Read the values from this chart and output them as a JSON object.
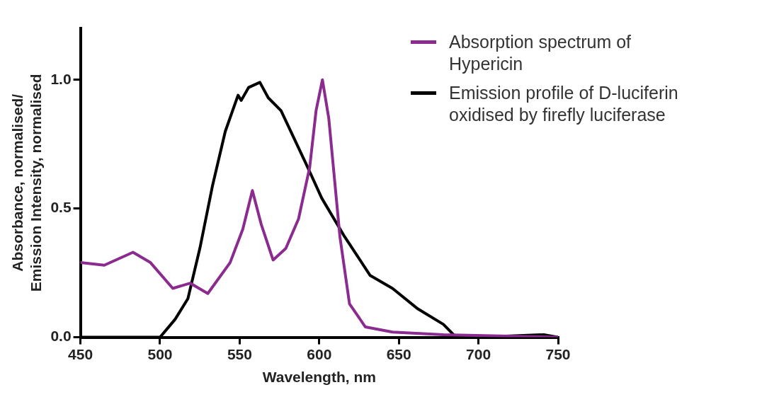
{
  "chart_data": {
    "type": "line",
    "xlabel": "Wavelength, nm",
    "ylabel": "Absorbance, normalised/\nEmission Intensity, normalised",
    "xlim": [
      450,
      750
    ],
    "xticks": [
      450,
      500,
      550,
      600,
      650,
      700,
      750
    ],
    "ylim": [
      0,
      1.2
    ],
    "yticks": [
      {
        "value": 0,
        "label": "0.0"
      },
      0.5,
      {
        "value": 1,
        "label": "1.0"
      }
    ],
    "grid": false,
    "legend": "top right",
    "marker": "none",
    "line_style": "solid",
    "series": [
      {
        "name": "Absorption spectrum of Hypericin",
        "color": "#8b2a8f",
        "x": [
          450,
          465,
          483,
          494,
          508,
          519,
          530,
          544,
          552,
          558,
          563.5,
          571,
          579,
          587,
          594,
          598,
          602,
          606,
          613,
          619,
          629,
          646,
          678,
          750
        ],
        "values": [
          0.29,
          0.28,
          0.33,
          0.29,
          0.19,
          0.21,
          0.17,
          0.29,
          0.42,
          0.57,
          0.44,
          0.3,
          0.345,
          0.46,
          0.66,
          0.88,
          1.0,
          0.85,
          0.39,
          0.13,
          0.04,
          0.02,
          0.01,
          0.0
        ]
      },
      {
        "name": "Emission profile of D-luciferin oxidised by firefly luciferase",
        "color": "#000000",
        "x": [
          450,
          495,
          500,
          509.5,
          517.5,
          525,
          533,
          541,
          549,
          551,
          555.6,
          562.7,
          568,
          576,
          592,
          601.6,
          616,
          632,
          646,
          662,
          678,
          686,
          700,
          741,
          750
        ],
        "values": [
          0,
          0,
          0,
          0.07,
          0.15,
          0.345,
          0.59,
          0.8,
          0.94,
          0.92,
          0.97,
          0.99,
          0.93,
          0.88,
          0.67,
          0.54,
          0.39,
          0.24,
          0.19,
          0.11,
          0.05,
          0,
          0,
          0.01,
          0
        ]
      }
    ]
  }
}
